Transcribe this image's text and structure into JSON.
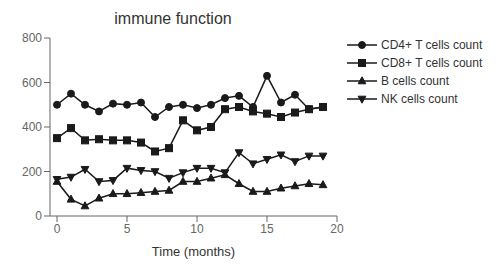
{
  "chart_data": {
    "type": "line",
    "title": "immune function",
    "xlabel": "Time (months)",
    "xlim": [
      -0.5,
      20
    ],
    "ylim": [
      0,
      800
    ],
    "xticks": [
      0,
      5,
      10,
      15,
      20
    ],
    "yticks": [
      0,
      200,
      400,
      600,
      800
    ],
    "grid": false,
    "legend": "right",
    "series": [
      {
        "name": "CD4+ T cells count",
        "color": "#1a1a1a",
        "marker": "circle",
        "x": [
          0,
          1,
          2,
          3,
          4,
          5,
          6,
          7,
          8,
          9,
          10,
          11,
          12,
          13,
          14,
          15,
          16,
          17,
          18,
          19
        ],
        "values": [
          500,
          550,
          500,
          470,
          505,
          500,
          510,
          445,
          490,
          500,
          485,
          500,
          530,
          540,
          490,
          630,
          510,
          545,
          480,
          490
        ]
      },
      {
        "name": "CD8+ T cells count",
        "color": "#1a1a1a",
        "marker": "square",
        "x": [
          0,
          1,
          2,
          3,
          4,
          5,
          6,
          7,
          8,
          9,
          10,
          11,
          12,
          13,
          14,
          15,
          16,
          17,
          18,
          19
        ],
        "values": [
          350,
          395,
          340,
          345,
          340,
          340,
          330,
          290,
          305,
          430,
          385,
          400,
          480,
          490,
          470,
          460,
          445,
          465,
          480,
          490
        ]
      },
      {
        "name": "B cells count",
        "color": "#1a1a1a",
        "marker": "triangle-up",
        "x": [
          0,
          1,
          2,
          3,
          4,
          5,
          6,
          7,
          8,
          9,
          10,
          11,
          12,
          13,
          14,
          15,
          16,
          17,
          18,
          19
        ],
        "values": [
          155,
          75,
          45,
          80,
          100,
          100,
          105,
          110,
          115,
          155,
          155,
          170,
          185,
          145,
          110,
          110,
          125,
          135,
          145,
          140
        ]
      },
      {
        "name": "NK cells count",
        "color": "#1a1a1a",
        "marker": "triangle-down",
        "x": [
          0,
          1,
          2,
          3,
          4,
          5,
          6,
          7,
          8,
          9,
          10,
          11,
          12,
          13,
          14,
          15,
          16,
          17,
          18,
          19
        ],
        "values": [
          165,
          175,
          210,
          155,
          160,
          215,
          205,
          200,
          170,
          195,
          215,
          215,
          195,
          285,
          235,
          255,
          275,
          245,
          270,
          270
        ]
      }
    ]
  }
}
